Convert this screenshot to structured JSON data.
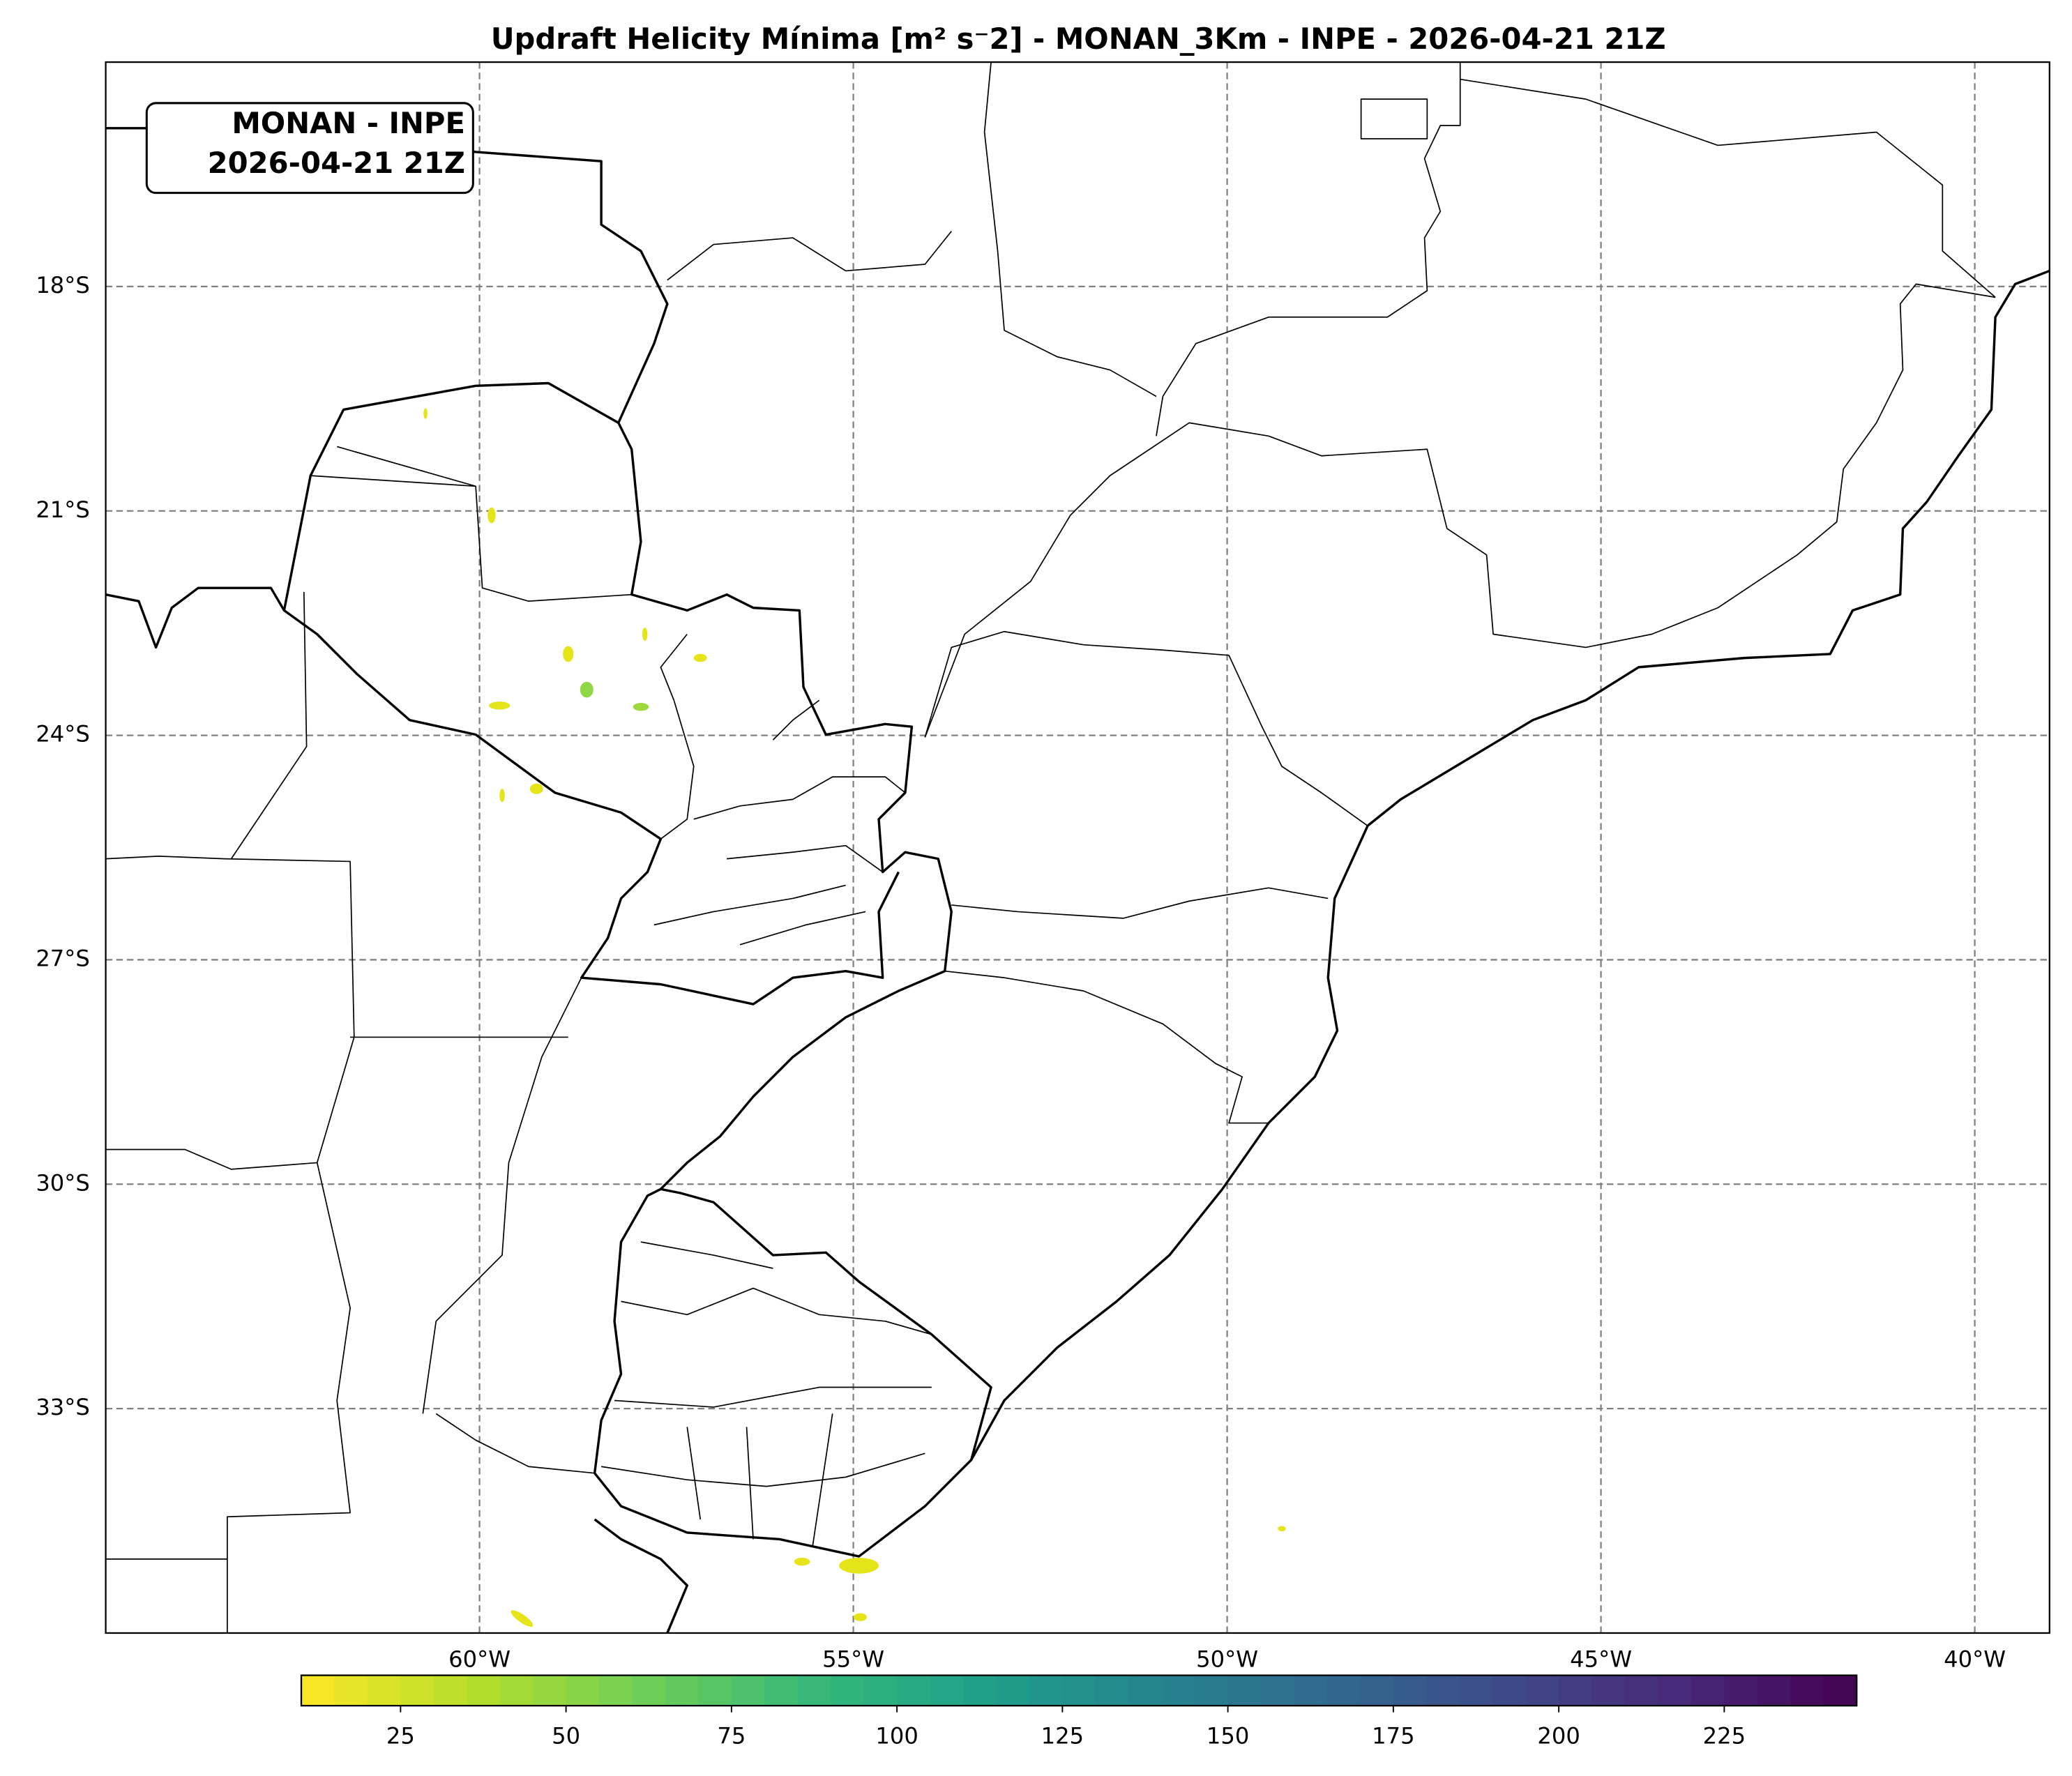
{
  "chart_data": {
    "type": "map",
    "title": "Updraft Helicity Mínima [m² s⁻2] - MONAN_3Km - INPE - 2026-04-21 21Z",
    "annotation": [
      "MONAN - INPE",
      "2026-04-21 21Z"
    ],
    "xlim": [
      -65,
      -39
    ],
    "ylim": [
      -36,
      -15
    ],
    "xticks": [
      {
        "value": -60,
        "label": "60°W"
      },
      {
        "value": -55,
        "label": "55°W"
      },
      {
        "value": -50,
        "label": "50°W"
      },
      {
        "value": -45,
        "label": "45°W"
      },
      {
        "value": -40,
        "label": "40°W"
      }
    ],
    "yticks": [
      {
        "value": -18,
        "label": "18°S"
      },
      {
        "value": -21,
        "label": "21°S"
      },
      {
        "value": -24,
        "label": "24°S"
      },
      {
        "value": -27,
        "label": "27°S"
      },
      {
        "value": -30,
        "label": "30°S"
      },
      {
        "value": -33,
        "label": "33°S"
      }
    ],
    "grid": true,
    "colorbar": {
      "colormap": "viridis_r",
      "lim": [
        10,
        245
      ],
      "ticks": [
        25,
        50,
        75,
        100,
        125,
        150,
        175,
        200,
        225
      ]
    }
  }
}
